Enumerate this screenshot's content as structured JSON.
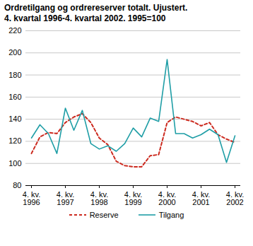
{
  "chart_data": {
    "type": "line",
    "title": "Ordretilgang og ordrereserver totalt. Ujustert.",
    "subtitle": "4. kvartal 1996-4. kvartal 2002. 1995=100",
    "categories": [
      "4. kv.\n1996",
      null,
      null,
      null,
      "4. kv.\n1997",
      null,
      null,
      null,
      "4. kv.\n1998",
      null,
      null,
      null,
      "4. kv.\n1999",
      null,
      null,
      null,
      "4. kv.\n2000",
      null,
      null,
      null,
      "4. kv.\n2001",
      null,
      null,
      null,
      "4. kv.\n2002"
    ],
    "series": [
      {
        "name": "Reserve",
        "color": "#cc2a1f",
        "line_style": "dashed",
        "values": [
          109,
          124,
          128,
          127,
          137,
          142,
          145,
          137,
          123,
          117,
          102,
          98,
          97,
          97,
          107,
          108,
          137,
          142,
          140,
          138,
          134,
          137,
          126,
          122,
          119
        ]
      },
      {
        "name": "Tilgang",
        "color": "#1f9ea6",
        "line_style": "solid",
        "values": [
          123,
          135,
          127,
          109,
          150,
          130,
          148,
          118,
          113,
          116,
          111,
          118,
          132,
          124,
          141,
          138,
          194,
          127,
          127,
          123,
          126,
          131,
          126,
          101,
          125
        ]
      }
    ],
    "ylim": [
      80,
      220
    ],
    "yticks": [
      80,
      100,
      120,
      140,
      160,
      180,
      200,
      220
    ],
    "grid": true,
    "legend": "bottom"
  }
}
